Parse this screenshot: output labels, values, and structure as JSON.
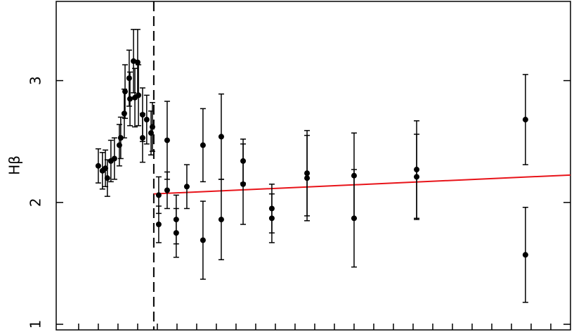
{
  "chart_data": {
    "type": "scatter",
    "ylabel": "Hβ",
    "xlim": [
      -0.14,
      26
    ],
    "ylim": [
      0.954,
      3.65
    ],
    "xticks": [
      1,
      2,
      3,
      4,
      5,
      6,
      7,
      8,
      9,
      10,
      11,
      12,
      13,
      14,
      15,
      16,
      17,
      18,
      19,
      20,
      21,
      22,
      23,
      24,
      25
    ],
    "yticks": [
      1,
      2,
      3
    ],
    "color": "#000000",
    "x": [
      2.0,
      2.21,
      2.36,
      2.46,
      2.64,
      2.82,
      3.07,
      3.14,
      3.32,
      3.36,
      3.57,
      3.61,
      3.79,
      3.86,
      4.0,
      4.04,
      4.25,
      4.25,
      4.46,
      4.68,
      4.75,
      5.07,
      5.07,
      5.5,
      5.5,
      5.96,
      5.96,
      6.5,
      7.32,
      7.32,
      8.25,
      8.25,
      9.36,
      9.36,
      10.82,
      10.82,
      12.61,
      12.61,
      15.0,
      15.0,
      18.18,
      18.18,
      23.71,
      23.71
    ],
    "values": [
      2.3,
      2.26,
      2.28,
      2.2,
      2.34,
      2.36,
      2.47,
      2.53,
      2.73,
      2.91,
      3.02,
      2.85,
      3.16,
      2.86,
      3.15,
      2.88,
      2.72,
      2.53,
      2.68,
      2.57,
      2.62,
      2.06,
      1.82,
      2.1,
      2.51,
      1.86,
      1.75,
      2.13,
      2.47,
      1.69,
      2.54,
      1.86,
      2.34,
      2.15,
      1.95,
      1.87,
      2.24,
      2.2,
      2.22,
      1.87,
      2.27,
      2.21,
      2.68,
      1.57
    ],
    "errors": [
      0.14,
      0.15,
      0.15,
      0.15,
      0.17,
      0.17,
      0.17,
      0.17,
      0.2,
      0.22,
      0.23,
      0.22,
      0.26,
      0.24,
      0.27,
      0.25,
      0.22,
      0.2,
      0.2,
      0.18,
      0.2,
      0.15,
      0.15,
      0.15,
      0.32,
      0.2,
      0.2,
      0.18,
      0.3,
      0.32,
      0.35,
      0.33,
      0.18,
      0.33,
      0.2,
      0.2,
      0.35,
      0.35,
      0.35,
      0.4,
      0.4,
      0.35,
      0.37,
      0.39
    ],
    "vline": 4.82,
    "fit": {
      "x": [
        4.82,
        26
      ],
      "values": [
        2.07,
        2.225
      ],
      "color": "#e8141a"
    }
  }
}
